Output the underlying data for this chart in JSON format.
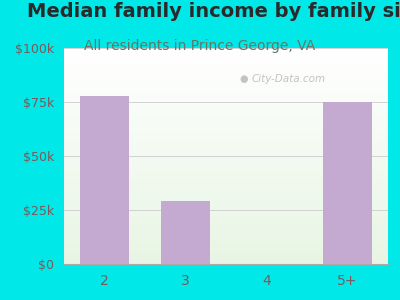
{
  "title": "Median family income by family size",
  "subtitle": "All residents in Prince George, VA",
  "categories": [
    "2",
    "3",
    "4",
    "5+"
  ],
  "values": [
    78000,
    29000,
    0,
    75000
  ],
  "bar_color": "#c4aad0",
  "background_color": "#00e8e8",
  "plot_bg_top": "#f0faf0",
  "plot_bg_bottom": "#ffffff",
  "title_color": "#2a2a2a",
  "subtitle_color": "#5a7a6a",
  "tick_label_color": "#7a5a5a",
  "ylim": [
    0,
    100000
  ],
  "yticks": [
    0,
    25000,
    50000,
    75000,
    100000
  ],
  "ytick_labels": [
    "$0",
    "$25k",
    "$50k",
    "$75k",
    "$100k"
  ],
  "watermark": "City-Data.com",
  "title_fontsize": 14,
  "subtitle_fontsize": 10,
  "tick_fontsize": 9
}
